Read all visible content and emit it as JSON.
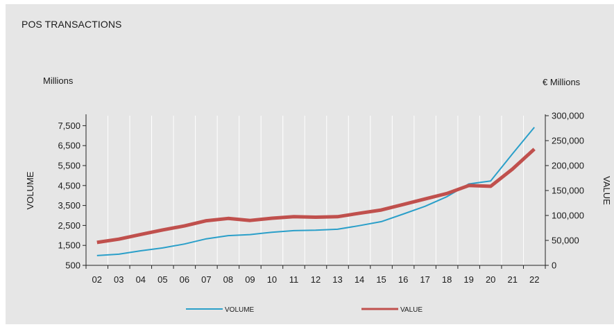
{
  "chart_data": {
    "type": "line",
    "title": "POS TRANSACTIONS",
    "y_left_unit": "Millions",
    "y_right_unit": "€ Millions",
    "ylabel_left": "VOLUME",
    "ylabel_right": "VALUE",
    "categories": [
      "02",
      "03",
      "04",
      "05",
      "06",
      "07",
      "08",
      "09",
      "10",
      "11",
      "12",
      "13",
      "14",
      "15",
      "16",
      "17",
      "18",
      "19",
      "20",
      "21",
      "22"
    ],
    "ylim_left": [
      500,
      8000
    ],
    "yticks_left": [
      500,
      1500,
      2500,
      3500,
      4500,
      5500,
      6500,
      7500
    ],
    "ytick_labels_left": [
      "500",
      "1,500",
      "2,500",
      "3,500",
      "4,500",
      "5,500",
      "6,500",
      "7,500"
    ],
    "ylim_right": [
      0,
      300000
    ],
    "yticks_right": [
      0,
      50000,
      100000,
      150000,
      200000,
      250000,
      300000
    ],
    "ytick_labels_right": [
      "0",
      "50,000",
      "100,000",
      "150,000",
      "200,000",
      "250,000",
      "300,000"
    ],
    "grid": "vertical",
    "legend_position": "bottom",
    "series": [
      {
        "name": "VOLUME",
        "axis": "left",
        "color": "#2a9fc9",
        "values": [
          990,
          1060,
          1230,
          1370,
          1570,
          1830,
          1990,
          2040,
          2160,
          2240,
          2260,
          2310,
          2490,
          2690,
          3070,
          3460,
          3940,
          4580,
          4730,
          6090,
          7420
        ]
      },
      {
        "name": "VALUE",
        "axis": "right",
        "color": "#c0504d",
        "values": [
          46000,
          52500,
          62000,
          71000,
          79000,
          89500,
          94000,
          90000,
          94500,
          97500,
          96500,
          97500,
          104500,
          111000,
          122000,
          133000,
          144000,
          160000,
          158500,
          193000,
          233000
        ]
      }
    ]
  }
}
